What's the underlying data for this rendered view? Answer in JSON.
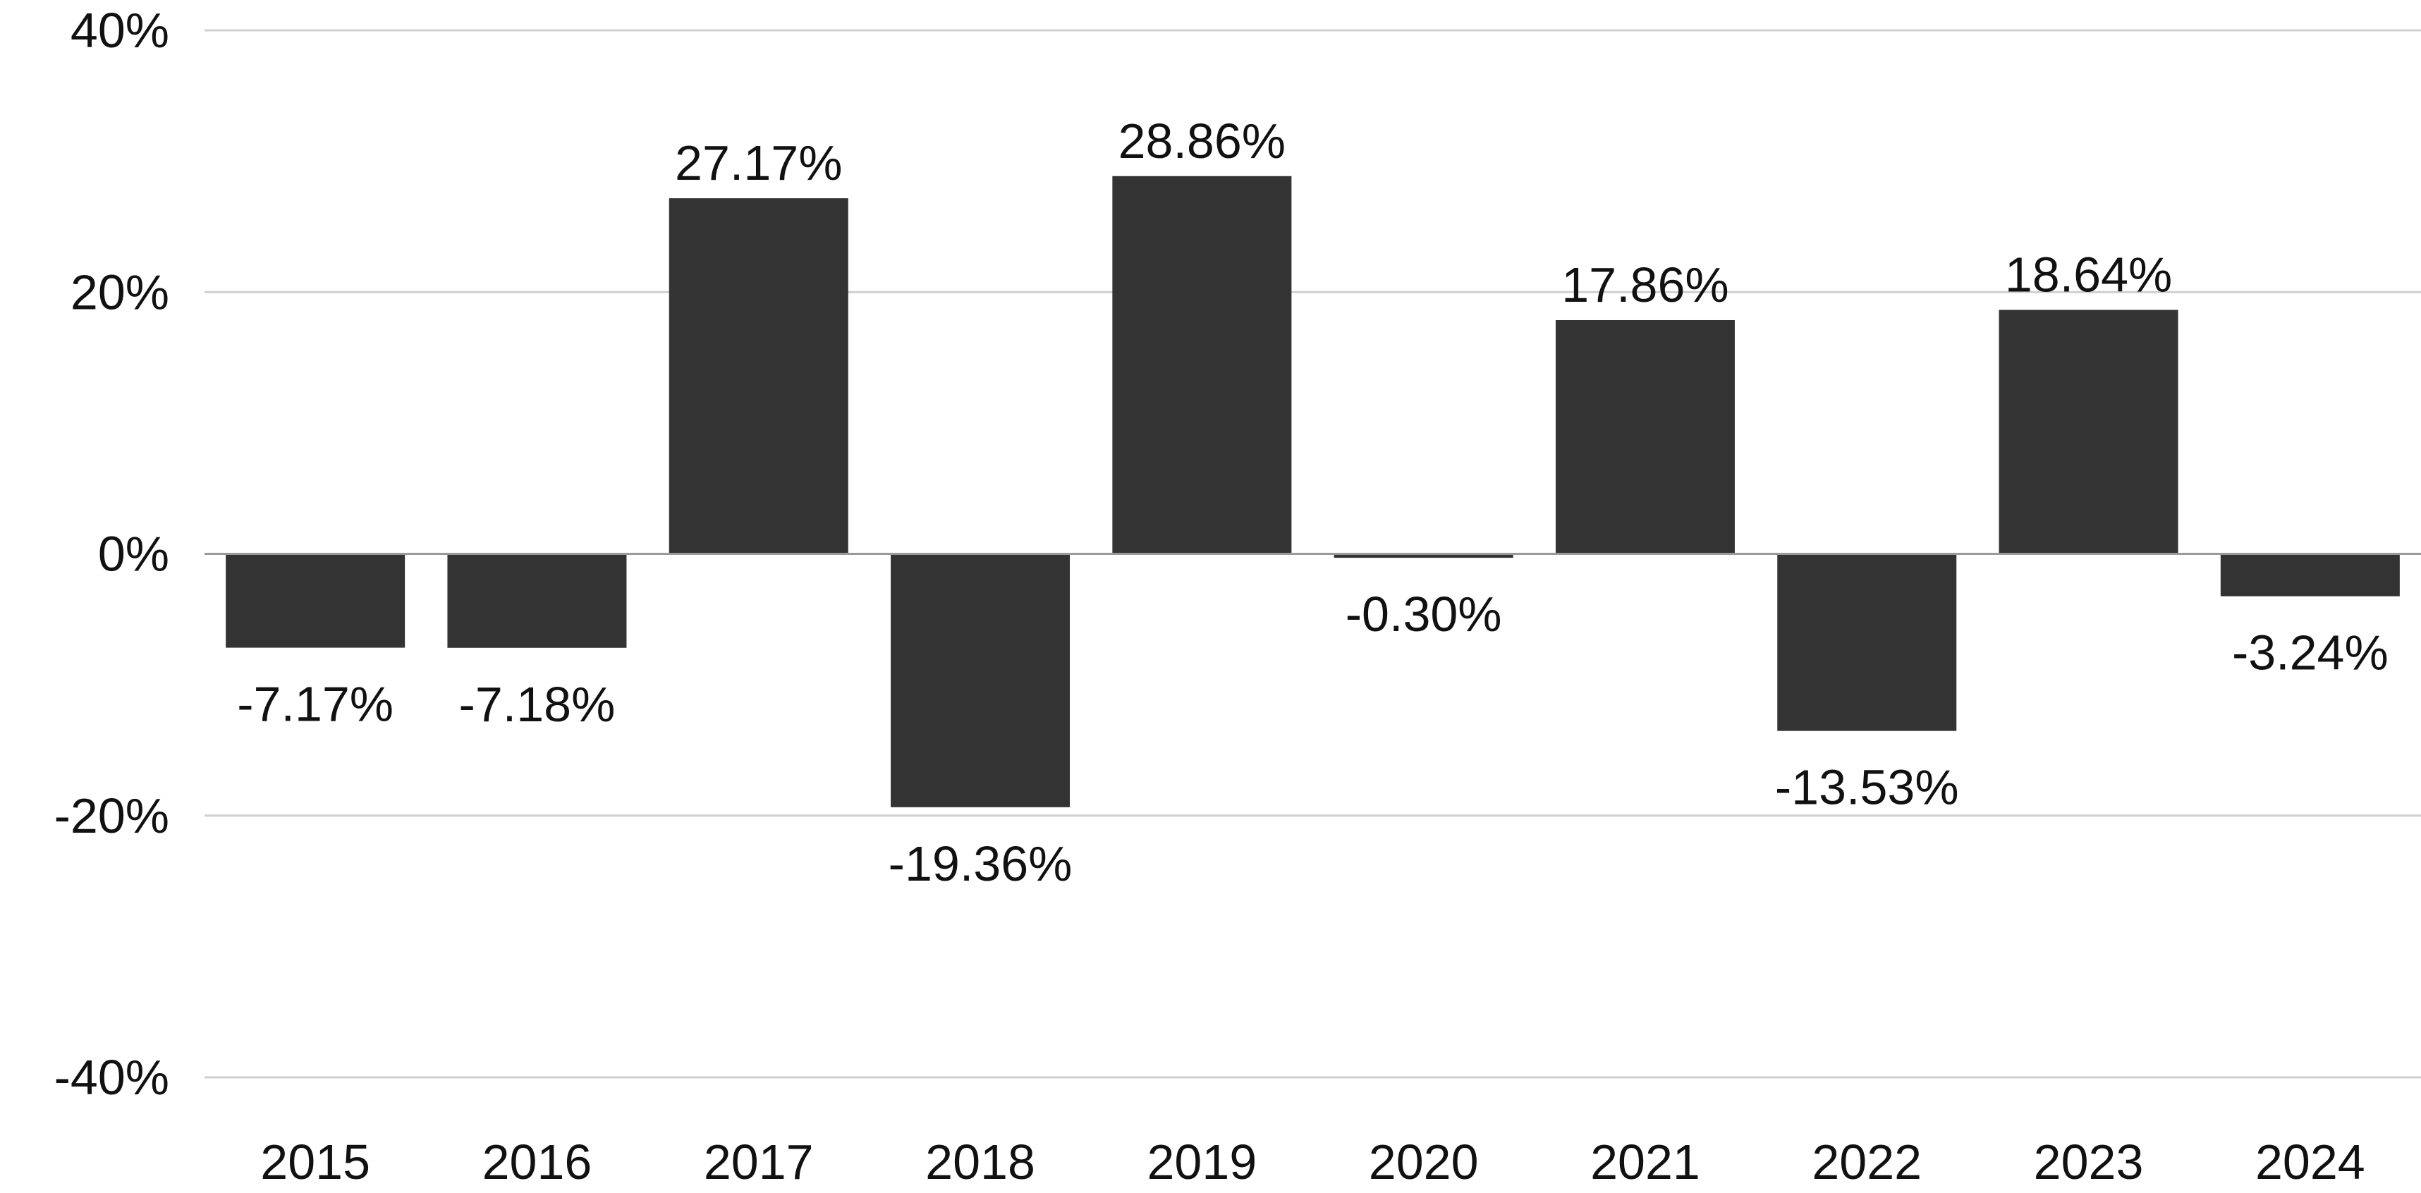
{
  "chart_data": {
    "type": "bar",
    "title": "",
    "xlabel": "",
    "ylabel": "",
    "categories": [
      "2015",
      "2016",
      "2017",
      "2018",
      "2019",
      "2020",
      "2021",
      "2022",
      "2023",
      "2024"
    ],
    "values": [
      -7.17,
      -7.18,
      27.17,
      -19.36,
      28.86,
      -0.3,
      17.86,
      -13.53,
      18.64,
      -3.24
    ],
    "data_labels": [
      "-7.17%",
      "-7.18%",
      "27.17%",
      "-19.36%",
      "28.86%",
      "-0.30%",
      "17.86%",
      "-13.53%",
      "18.64%",
      "-3.24%"
    ],
    "ylim": [
      -40,
      40
    ],
    "y_ticks": [
      40,
      20,
      0,
      -20,
      -40
    ],
    "y_tick_labels": [
      "40%",
      "20%",
      "0%",
      "-20%",
      "-40%"
    ],
    "grid": true,
    "legend": "none",
    "bar_color": "#333333",
    "grid_color": "#cfcfcf",
    "zero_line_color": "#9a9a9a"
  }
}
